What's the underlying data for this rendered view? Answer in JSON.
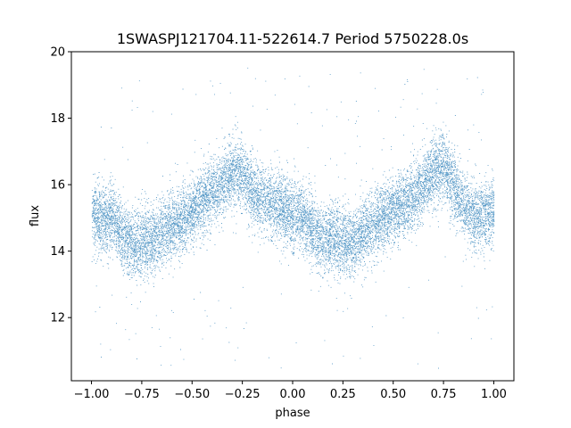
{
  "chart_data": {
    "type": "scatter",
    "title": "1SWASPJ121704.11-522614.7 Period 5750228.0s",
    "xlabel": "phase",
    "ylabel": "flux",
    "xlim": [
      -1.1,
      1.1
    ],
    "ylim": [
      10.1,
      20.0
    ],
    "x_ticks": [
      -1.0,
      -0.75,
      -0.5,
      -0.25,
      0.0,
      0.25,
      0.5,
      0.75,
      1.0
    ],
    "x_tick_labels": [
      "−1.00",
      "−0.75",
      "−0.50",
      "−0.25",
      "0.00",
      "0.25",
      "0.50",
      "0.75",
      "1.00"
    ],
    "y_ticks": [
      12,
      14,
      16,
      18,
      20
    ],
    "y_tick_labels": [
      "12",
      "14",
      "16",
      "18",
      "20"
    ],
    "grid": false,
    "marker_color": "#1f77b4",
    "series": [
      {
        "trend": {
          "phase": [
            -1.0,
            -0.97,
            -0.93,
            -0.9,
            -0.85,
            -0.8,
            -0.75,
            -0.7,
            -0.65,
            -0.6,
            -0.55,
            -0.5,
            -0.45,
            -0.4,
            -0.35,
            -0.3,
            -0.25,
            -0.2,
            -0.15,
            -0.1,
            -0.05,
            0.0,
            0.03,
            0.07,
            0.1,
            0.15,
            0.2,
            0.25,
            0.3,
            0.35,
            0.4,
            0.45,
            0.5,
            0.55,
            0.6,
            0.65,
            0.7,
            0.75,
            0.8,
            0.85,
            0.9,
            0.95,
            1.0
          ],
          "flux": [
            15.2,
            15.0,
            14.9,
            15.1,
            14.5,
            14.2,
            14.3,
            14.2,
            14.6,
            14.8,
            14.9,
            15.2,
            15.5,
            15.8,
            16.0,
            16.4,
            16.3,
            15.8,
            15.6,
            15.4,
            15.3,
            15.0,
            15.2,
            14.8,
            14.6,
            14.3,
            14.4,
            14.3,
            14.2,
            14.6,
            14.8,
            15.0,
            15.2,
            15.4,
            15.6,
            16.0,
            16.4,
            16.5,
            16.0,
            15.4,
            15.0,
            15.1,
            15.2
          ]
        },
        "point_count": 14000,
        "scatter_sd": 0.5,
        "spread_range": [
          10.4,
          19.6
        ]
      }
    ]
  }
}
